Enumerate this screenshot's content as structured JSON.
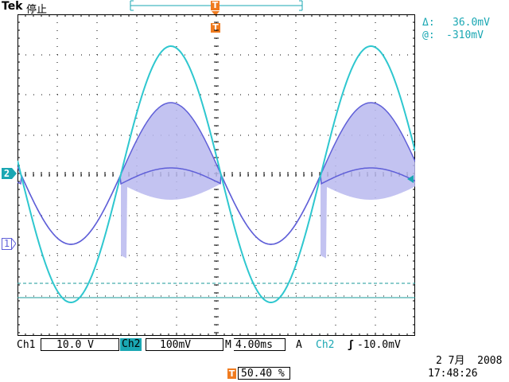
{
  "header": {
    "brand": "Tek",
    "status": "停止",
    "trigger_marker": "T"
  },
  "measurements": {
    "delta_label": "Δ:",
    "delta_value": "36.0mV",
    "at_label": "@:",
    "at_value": "-310mV"
  },
  "markers": {
    "ch2_marker": "2",
    "ch1_marker": "1",
    "trigger_pos_marker": "T"
  },
  "footer": {
    "ch1_label": "Ch1",
    "ch1_scale": "10.0 V",
    "ch2_label": "Ch2",
    "ch2_scale": "100mV",
    "time_label": "M",
    "time_value": "4.00ms",
    "trigger_mode": "A",
    "trigger_source": "Ch2",
    "trigger_slope": "ʃ",
    "trigger_level": "-10.0mV",
    "trigger_pos_marker": "T",
    "trigger_position": "50.40 %",
    "date": "2 7月  2008",
    "time": "17:48:26"
  },
  "colors": {
    "ch1": "#2ec7cf",
    "ch2": "#5f5fd8",
    "ch2_fill": "#b8b8ee",
    "cursor": "#1a9a9a",
    "badge_orange": "#f07b1f",
    "badge_cyan": "#1aa7b3",
    "grid": "#000000"
  }
}
